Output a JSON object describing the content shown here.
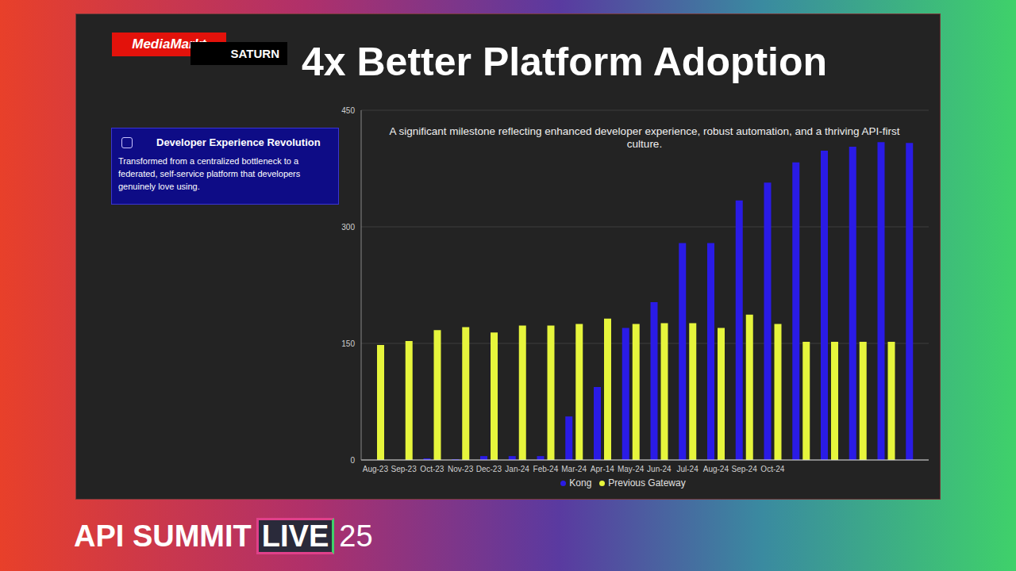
{
  "chart_data": {
    "type": "bar",
    "title": "4x Better Platform Adoption",
    "subtitle": "A significant milestone reflecting enhanced developer experience, robust automation, and a thriving API-first culture.",
    "categories": [
      "Aug-23",
      "Sep-23",
      "Oct-23",
      "Nov-23",
      "Dec-23",
      "Jan-24",
      "Feb-24",
      "Mar-24",
      "Apr-14",
      "May-24",
      "Jun-24",
      "Jul-24",
      "Aug-24",
      "Sep-24",
      "Oct-24",
      null,
      null,
      null,
      null,
      null
    ],
    "series": [
      {
        "name": "Kong",
        "color": "#2a1be6",
        "values": [
          0,
          0,
          2,
          1,
          5,
          5,
          5,
          56,
          94,
          170,
          203,
          279,
          279,
          334,
          357,
          383,
          398,
          403,
          409,
          408
        ]
      },
      {
        "name": "Previous Gateway",
        "color": "#e6f53c",
        "values": [
          148,
          153,
          167,
          171,
          164,
          173,
          173,
          175,
          182,
          175,
          176,
          176,
          170,
          187,
          175,
          152,
          152,
          152,
          152,
          null
        ]
      }
    ],
    "ylim": [
      0,
      450
    ],
    "yticks": [
      0,
      150,
      300,
      450
    ],
    "grid": true,
    "legend": "bottom"
  },
  "slide": {
    "logos": [
      "MediaMarkt",
      "SATURN"
    ],
    "callout": {
      "title": "Developer Experience Revolution",
      "text": "Transformed from a centralized bottleneck to a federated, self-service platform that developers genuinely love using."
    },
    "footer": [
      "API SUMMIT",
      "LIVE",
      "25"
    ]
  }
}
